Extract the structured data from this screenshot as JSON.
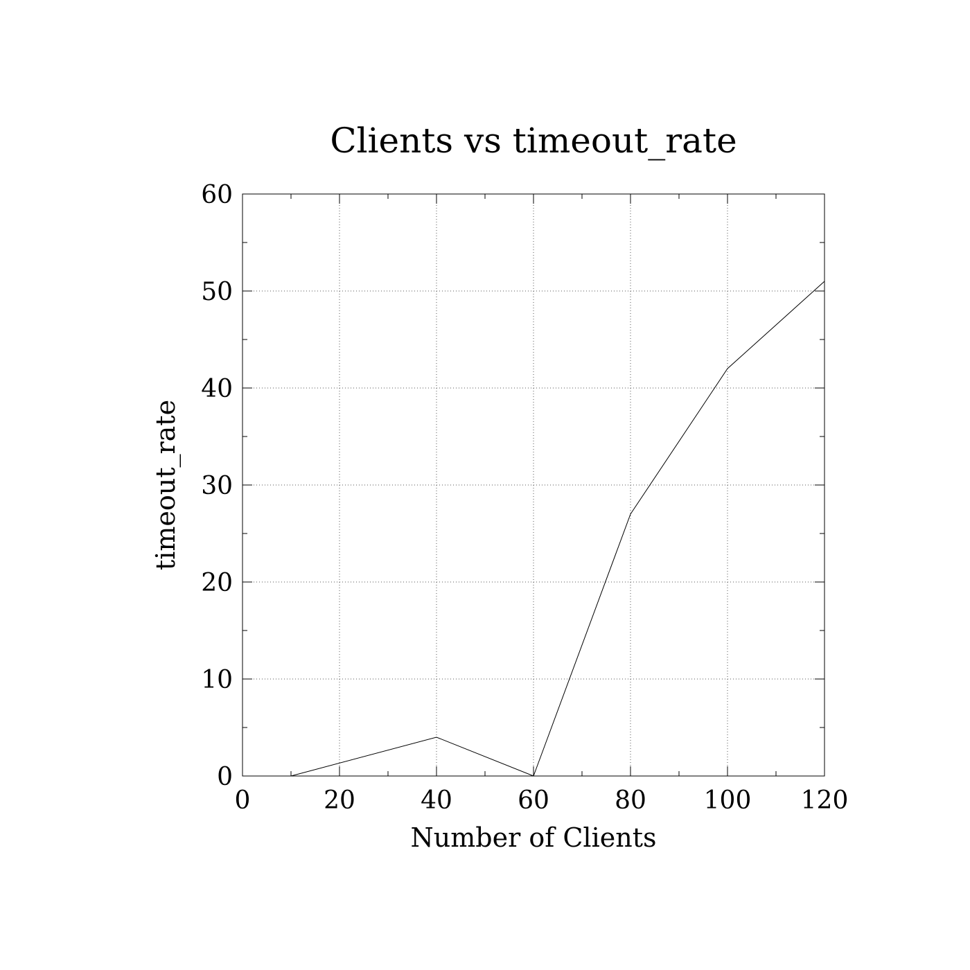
{
  "chart_data": {
    "type": "line",
    "title": "Clients vs timeout_rate",
    "xlabel": "Number of Clients",
    "ylabel": "timeout_rate",
    "xlim": [
      0,
      120
    ],
    "ylim": [
      0,
      60
    ],
    "x_ticks": [
      0,
      20,
      40,
      60,
      80,
      100,
      120
    ],
    "y_ticks": [
      0,
      10,
      20,
      30,
      40,
      50,
      60
    ],
    "x_minor_step": 10,
    "y_minor_step": 5,
    "grid": true,
    "series": [
      {
        "x": [
          10,
          40,
          60,
          80,
          100,
          120
        ],
        "values": [
          0,
          4,
          0,
          27,
          42,
          51
        ]
      }
    ]
  }
}
